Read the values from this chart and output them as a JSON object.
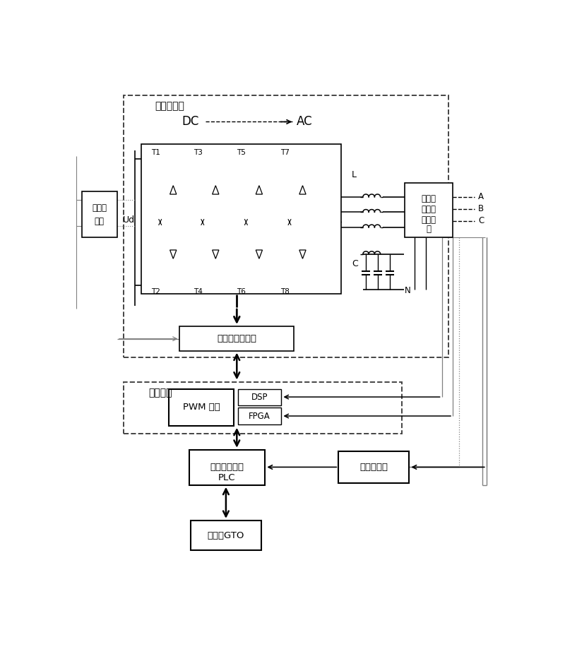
{
  "figsize": [
    8.0,
    9.43
  ],
  "dpi": 100,
  "labels": {
    "main_circuit": "主电路单元",
    "master_control": "主控单元",
    "DC": "DC",
    "AC": "AC",
    "Ud": "Ud",
    "L": "L",
    "C": "C",
    "N": "N",
    "A": "A",
    "B": "B",
    "C_label": "C",
    "T1": "T1",
    "T2": "T2",
    "T3": "T3",
    "T4": "T4",
    "T5": "T5",
    "T6": "T6",
    "T7": "T7",
    "T8": "T8",
    "drive_power": "驱动和功率单元",
    "pwm": "PWM 控制",
    "dsp": "DSP",
    "fpga": "FPGA",
    "plc_line1": "可编程控制器",
    "plc_line2": "PLC",
    "power_meter": "电力参数表",
    "touch_screen": "触摸屏GTO",
    "voltage_sensor_line1": "电压传",
    "voltage_sensor_line2": "感器",
    "ac_sensor_line1": "交流电",
    "ac_sensor_line2": "压、电",
    "ac_sensor_line3": "流传感",
    "ac_sensor_line4": "器"
  }
}
